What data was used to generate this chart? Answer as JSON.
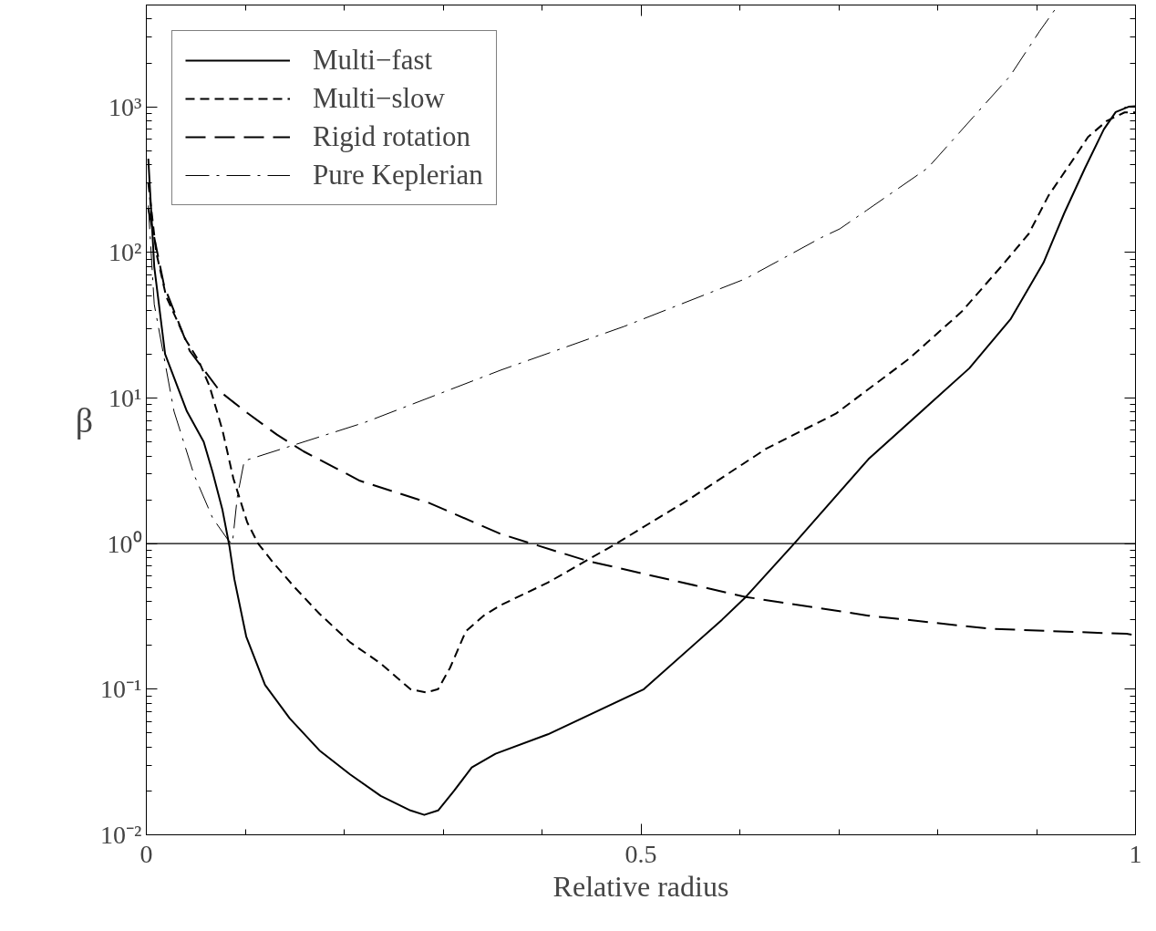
{
  "chart_data": {
    "type": "line",
    "xlabel": "Relative radius",
    "ylabel": "β",
    "log": "y",
    "xlim": [
      0,
      1
    ],
    "xticks": [
      0,
      0.5,
      1
    ],
    "ylim": [
      0.01,
      5000
    ],
    "yticks": [
      {
        "value": 0.01,
        "label": "10⁻²"
      },
      {
        "value": 0.1,
        "label": "10⁻¹"
      },
      {
        "value": 1,
        "label": "10⁰"
      },
      {
        "value": 10,
        "label": "10¹"
      },
      {
        "value": 100,
        "label": "10²"
      },
      {
        "value": 1000,
        "label": "10³"
      }
    ],
    "legend": "top left",
    "grid": false,
    "ref_lines": [
      {
        "axis": "y",
        "value": 1,
        "color": "#000000",
        "line_style": "solid"
      }
    ],
    "series": [
      {
        "name": "Multi−fast",
        "color": "#000000",
        "line_style": "solid",
        "x": [
          0.002,
          0.008,
          0.019,
          0.041,
          0.058,
          0.067,
          0.077,
          0.084,
          0.089,
          0.101,
          0.12,
          0.145,
          0.175,
          0.206,
          0.237,
          0.267,
          0.281,
          0.295,
          0.311,
          0.329,
          0.353,
          0.406,
          0.503,
          0.582,
          0.606,
          0.655,
          0.73,
          0.832,
          0.874,
          0.907,
          0.928,
          0.949,
          0.968,
          0.98,
          0.993,
          1.0
        ],
        "values": [
          440,
          80,
          20,
          8.1,
          5.0,
          3.1,
          1.7,
          0.96,
          0.57,
          0.23,
          0.107,
          0.063,
          0.038,
          0.026,
          0.0185,
          0.0147,
          0.0137,
          0.0147,
          0.02,
          0.029,
          0.036,
          0.049,
          0.1,
          0.3,
          0.43,
          1.0,
          3.8,
          16,
          35,
          85,
          186,
          380,
          700,
          920,
          1000,
          1010
        ]
      },
      {
        "name": "Multi−slow",
        "color": "#000000",
        "line_style": "dashed",
        "x": [
          0.002,
          0.01,
          0.02,
          0.04,
          0.053,
          0.064,
          0.077,
          0.088,
          0.102,
          0.113,
          0.129,
          0.15,
          0.175,
          0.206,
          0.237,
          0.267,
          0.283,
          0.295,
          0.307,
          0.323,
          0.341,
          0.359,
          0.406,
          0.475,
          0.548,
          0.627,
          0.697,
          0.771,
          0.824,
          0.865,
          0.892,
          0.912,
          0.937,
          0.952,
          0.971,
          0.989,
          1.0
        ],
        "values": [
          300,
          100,
          50,
          25,
          18,
          12,
          6,
          2.8,
          1.4,
          1.0,
          0.73,
          0.5,
          0.33,
          0.21,
          0.15,
          0.1,
          0.095,
          0.1,
          0.14,
          0.25,
          0.32,
          0.38,
          0.54,
          1.0,
          2.0,
          4.5,
          7.8,
          18.6,
          39,
          81,
          134,
          245,
          435,
          620,
          800,
          915,
          915
        ]
      },
      {
        "name": "Rigid rotation",
        "color": "#000000",
        "line_style": "longdash",
        "x": [
          0.002,
          0.018,
          0.044,
          0.075,
          0.102,
          0.132,
          0.159,
          0.216,
          0.286,
          0.359,
          0.446,
          0.606,
          0.73,
          0.853,
          0.991,
          1.0
        ],
        "values": [
          200,
          59,
          21,
          11,
          7.9,
          5.6,
          4.3,
          2.7,
          1.9,
          1.16,
          0.76,
          0.43,
          0.32,
          0.26,
          0.24,
          0.235
        ]
      },
      {
        "name": "Pure Keplerian",
        "color": "#000000",
        "line_style": "dashdot",
        "x": [
          0.002,
          0.008,
          0.028,
          0.048,
          0.067,
          0.083,
          0.087,
          0.092,
          0.099,
          0.221,
          0.359,
          0.483,
          0.606,
          0.682,
          0.701,
          0.728,
          0.79,
          0.836,
          0.873,
          0.903,
          0.92
        ],
        "values": [
          210,
          44,
          8.1,
          3.0,
          1.5,
          1.05,
          1.0,
          2.1,
          3.7,
          6.8,
          15.6,
          31,
          66,
          126,
          145,
          194,
          380,
          850,
          1620,
          3300,
          4800
        ]
      }
    ]
  }
}
